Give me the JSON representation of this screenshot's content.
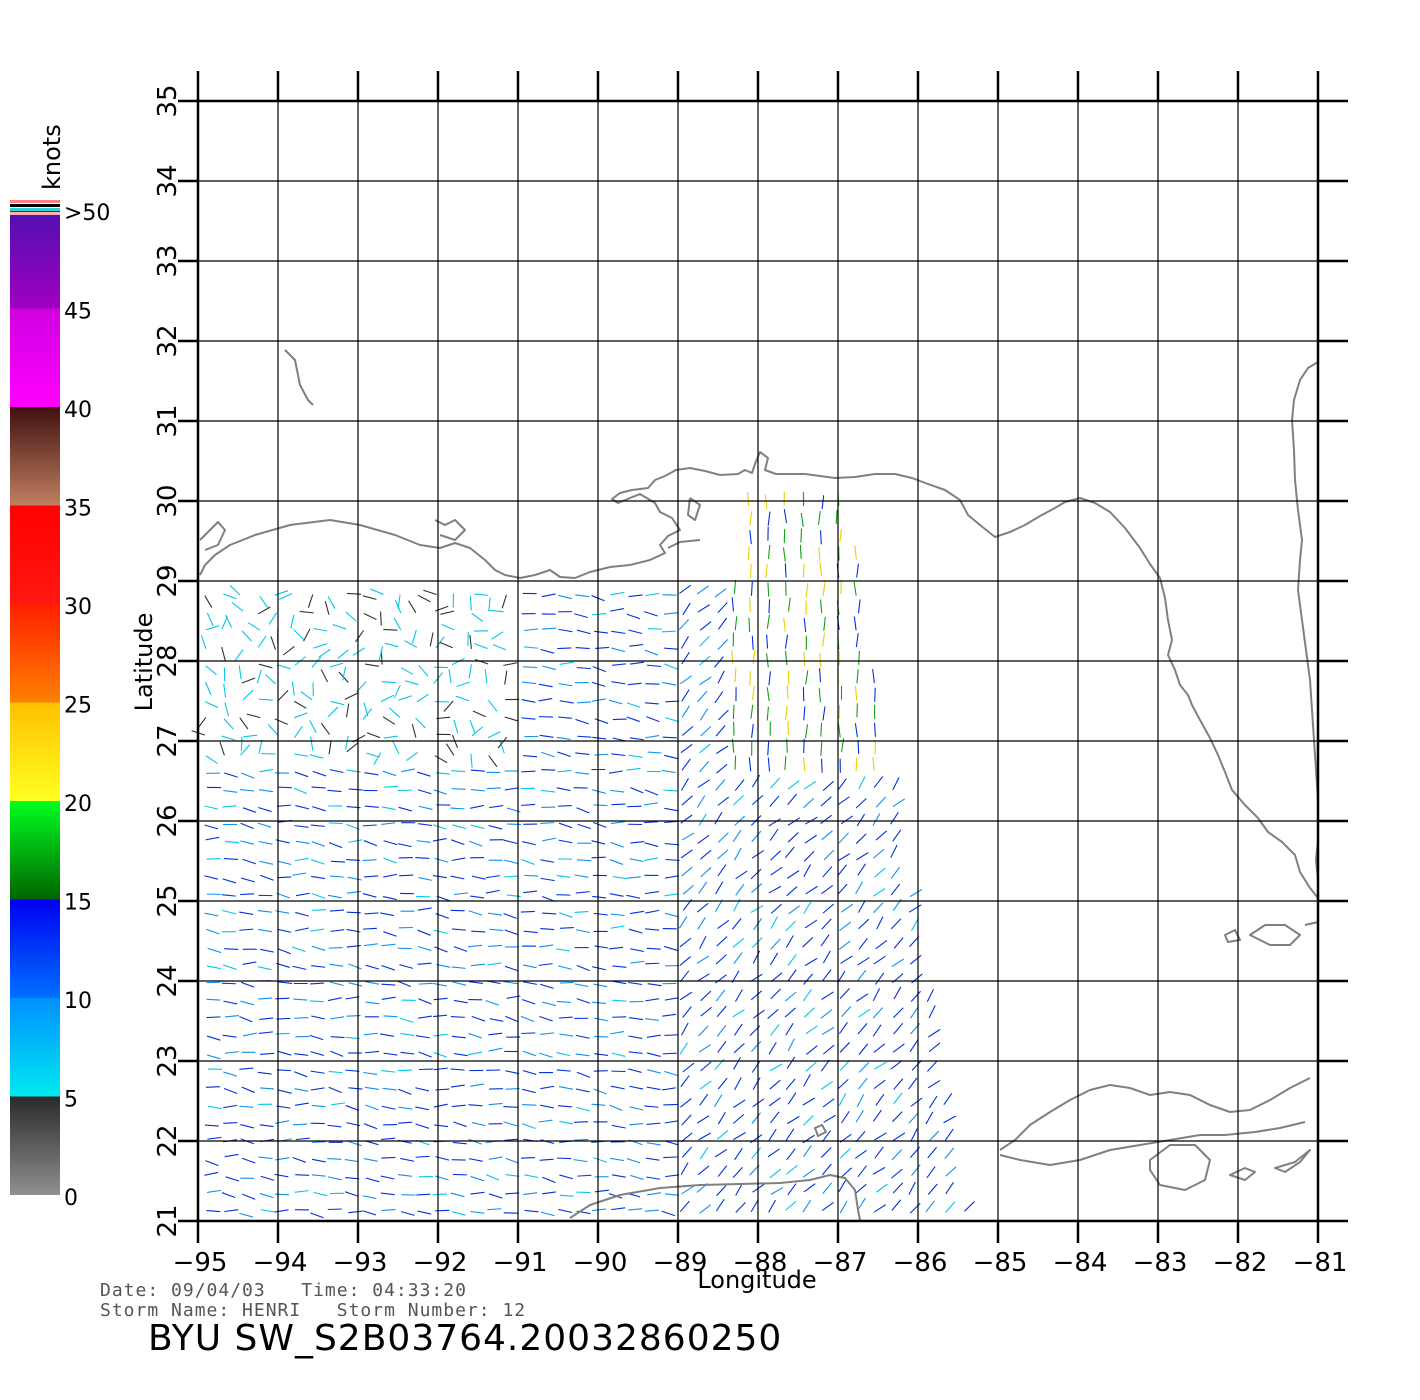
{
  "map": {
    "x_axis_label": "Longitude",
    "y_axis_label": "Latitude",
    "lon_ticks": [
      -95,
      -94,
      -93,
      -92,
      -91,
      -90,
      -89,
      -88,
      -87,
      -86,
      -85,
      -84,
      -83,
      -82,
      -81
    ],
    "lat_ticks": [
      21,
      22,
      23,
      24,
      25,
      26,
      27,
      28,
      29,
      30,
      31,
      32,
      33,
      34,
      35
    ],
    "lon_range": [
      -95,
      -81
    ],
    "lat_range": [
      21,
      35
    ],
    "grid": true,
    "coastline_color": "#808080",
    "swath": {
      "description_visible": false,
      "lon_west_edge": -95,
      "lon_east_edge_south": -85.4,
      "lon_east_edge_north": -86.9,
      "lat_south": 21,
      "lat_north": 30
    }
  },
  "colorbar": {
    "unit_label": "knots",
    "labels": [
      "0",
      "5",
      "10",
      "15",
      "20",
      "25",
      "30",
      "35",
      "40",
      "45",
      ">50"
    ],
    "segments": [
      {
        "from": 0,
        "to": 5,
        "colors": [
          "#909090",
          "#2a2a2a"
        ]
      },
      {
        "from": 5,
        "to": 10,
        "colors": [
          "#00e8f0",
          "#0090ff"
        ]
      },
      {
        "from": 10,
        "to": 15,
        "colors": [
          "#0070ff",
          "#0000f0"
        ]
      },
      {
        "from": 15,
        "to": 20,
        "colors": [
          "#006400",
          "#00ff20"
        ]
      },
      {
        "from": 20,
        "to": 25,
        "colors": [
          "#ffff20",
          "#ffc000"
        ]
      },
      {
        "from": 25,
        "to": 30,
        "colors": [
          "#ff8000",
          "#ff2000"
        ]
      },
      {
        "from": 30,
        "to": 35,
        "colors": [
          "#ff1810",
          "#ff0000"
        ]
      },
      {
        "from": 35,
        "to": 40,
        "colors": [
          "#c08060",
          "#401010"
        ]
      },
      {
        "from": 40,
        "to": 45,
        "colors": [
          "#ff00ff",
          "#d000e0"
        ]
      },
      {
        "from": 45,
        "to": 50,
        "colors": [
          "#a000c0",
          "#5010b0"
        ]
      }
    ]
  },
  "footer": {
    "date_line": "Date: 09/04/03   Time: 04:33:20",
    "storm_line": "Storm Name: HENRI   Storm Number: 12",
    "product_id": "BYU SW_S2B03764.20032860250"
  }
}
